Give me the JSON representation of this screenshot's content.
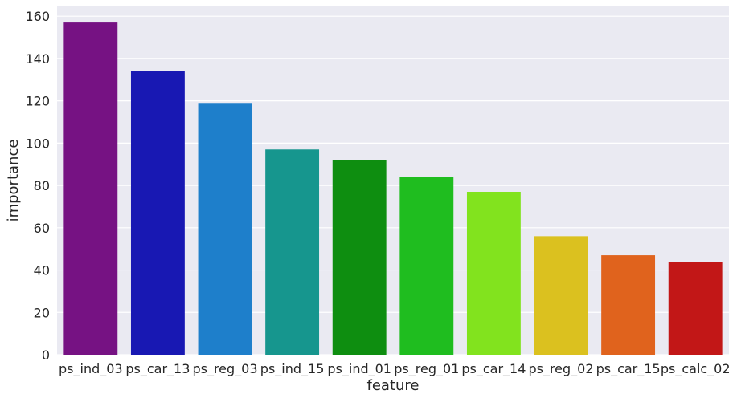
{
  "chart_data": {
    "type": "bar",
    "categories": [
      "ps_ind_03",
      "ps_car_13",
      "ps_reg_03",
      "ps_ind_15",
      "ps_ind_01",
      "ps_reg_01",
      "ps_car_14",
      "ps_reg_02",
      "ps_car_15",
      "ps_calc_02"
    ],
    "values": [
      157,
      134,
      119,
      97,
      92,
      84,
      77,
      56,
      47,
      44
    ],
    "colors": [
      "#761283",
      "#1818b3",
      "#1e7fcb",
      "#16968e",
      "#0e8e10",
      "#1fbd1f",
      "#82e31e",
      "#dbc11f",
      "#e0631d",
      "#c21717"
    ],
    "xlabel": "feature",
    "ylabel": "importance",
    "ylim": [
      0,
      165
    ],
    "yticks": [
      0,
      20,
      40,
      60,
      80,
      100,
      120,
      140,
      160
    ],
    "grid": true,
    "background": "#eaeaf2"
  }
}
